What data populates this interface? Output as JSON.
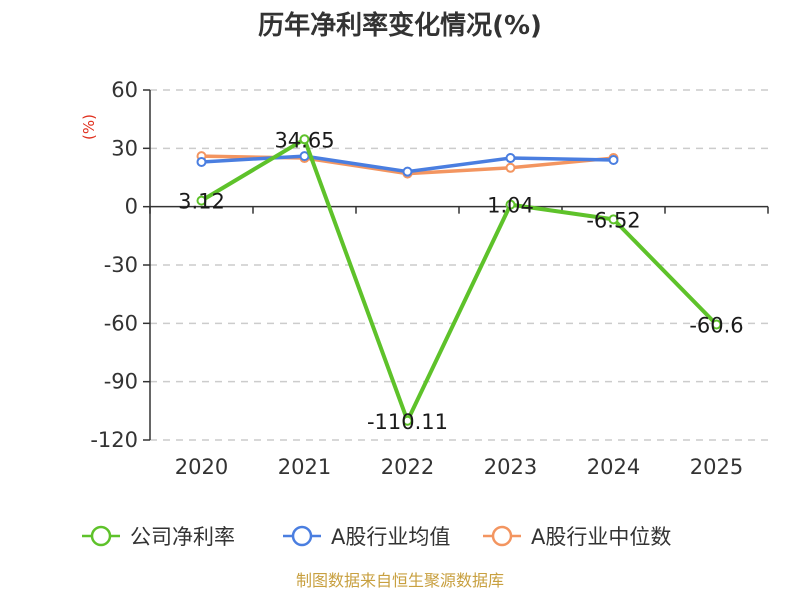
{
  "chart_data": {
    "type": "line",
    "title": "历年净利率变化情况(%)",
    "ylabel": "(%)",
    "xlabel": "",
    "categories": [
      "2020",
      "2021",
      "2022",
      "2023",
      "2024",
      "2025"
    ],
    "yticks": [
      60,
      30,
      0,
      -30,
      -60,
      -90,
      -120
    ],
    "ylim": [
      -120,
      60
    ],
    "grid": true,
    "legend_position": "bottom",
    "series": [
      {
        "name": "公司净利率",
        "color": "#5ec22a",
        "values": [
          3.12,
          34.65,
          -110.11,
          1.04,
          -6.52,
          -60.6
        ],
        "labels": [
          "3.12",
          "34.65",
          "-110.11",
          "1.04",
          "-6.52",
          "-60.6"
        ]
      },
      {
        "name": "A股行业均值",
        "color": "#4a7ee0",
        "values": [
          23,
          26,
          18,
          25,
          24,
          null
        ]
      },
      {
        "name": "A股行业中位数",
        "color": "#f39560",
        "values": [
          26,
          25,
          17,
          20,
          25,
          null
        ]
      }
    ],
    "source": "制图数据来自恒生聚源数据库"
  }
}
